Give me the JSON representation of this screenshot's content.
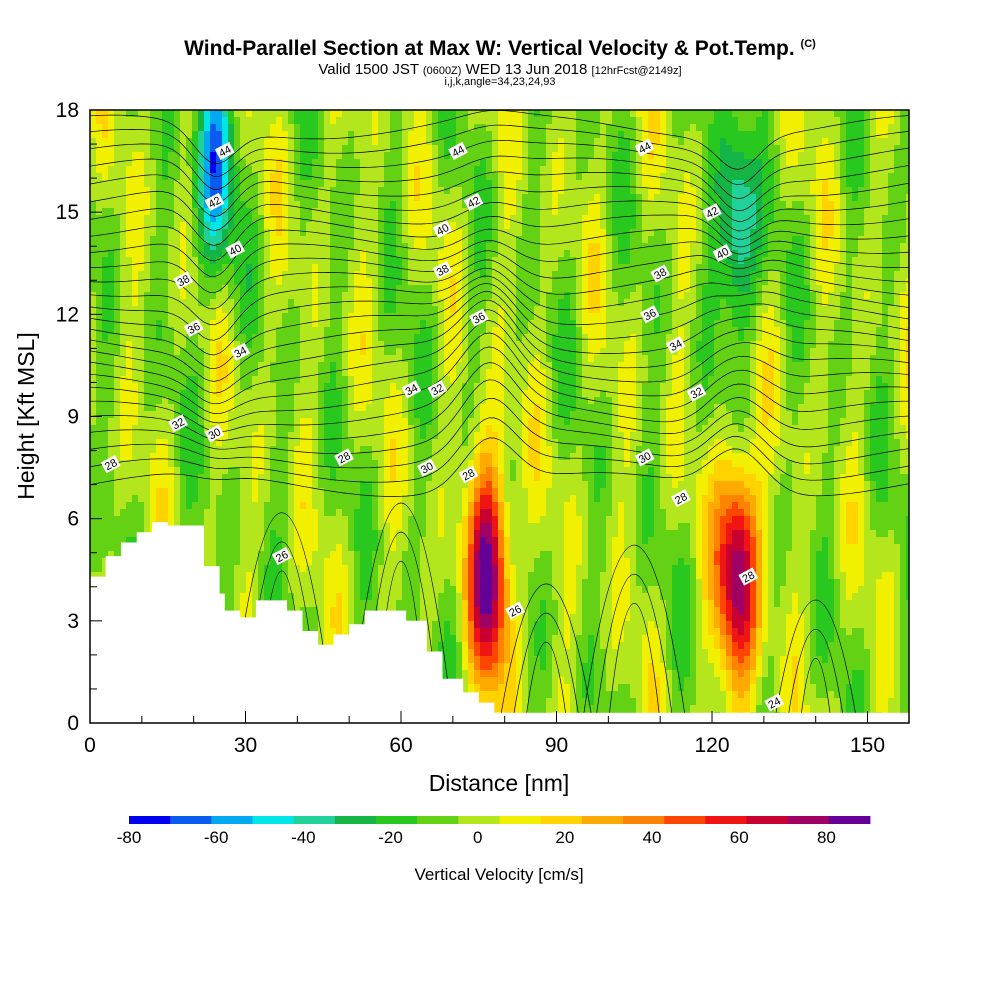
{
  "header": {
    "title": "Wind-Parallel Section at Max W: Vertical Velocity & Pot.Temp.",
    "copyright": "(C)",
    "valid_prefix": "Valid 1500 JST",
    "valid_utc": "(0600Z)",
    "valid_date": "WED 13 Jun 2018",
    "forecast": "[12hrFcst@2149z]",
    "indices": "i,j,k,angle=34,23,24,93"
  },
  "chart_data": {
    "type": "heatmap",
    "title": "Wind-Parallel Section at Max W: Vertical Velocity & Pot.Temp.",
    "xlabel": "Distance [nm]",
    "ylabel": "Height [Kft MSL]",
    "xlim": [
      0,
      158
    ],
    "ylim": [
      0,
      18
    ],
    "x_ticks": [
      0,
      30,
      60,
      90,
      120,
      150
    ],
    "y_ticks": [
      0,
      3,
      6,
      9,
      12,
      15,
      18
    ],
    "colorbar": {
      "label": "Vertical Velocity [cm/s]",
      "range": [
        -80,
        90
      ],
      "step": 10,
      "ticks": [
        -80,
        -60,
        -40,
        -20,
        0,
        20,
        40,
        60,
        80
      ],
      "colors": [
        "#0000ee",
        "#0a5cf0",
        "#00a8f0",
        "#00e6e6",
        "#20d29a",
        "#14b446",
        "#28c81e",
        "#64d214",
        "#b4e61e",
        "#f0f000",
        "#ffd200",
        "#ffaa00",
        "#ff8200",
        "#ff4600",
        "#f01414",
        "#c80032",
        "#a00064",
        "#640096"
      ]
    },
    "terrain": [
      [
        0,
        4.3
      ],
      [
        3,
        4.3
      ],
      [
        3,
        4.9
      ],
      [
        6,
        4.9
      ],
      [
        6,
        5.3
      ],
      [
        9,
        5.3
      ],
      [
        9,
        5.6
      ],
      [
        12,
        5.6
      ],
      [
        12,
        5.9
      ],
      [
        15,
        5.9
      ],
      [
        15,
        5.8
      ],
      [
        22,
        5.8
      ],
      [
        22,
        4.6
      ],
      [
        25,
        4.6
      ],
      [
        25,
        3.8
      ],
      [
        26,
        3.8
      ],
      [
        26,
        3.3
      ],
      [
        29,
        3.3
      ],
      [
        29,
        3.1
      ],
      [
        32,
        3.1
      ],
      [
        32,
        3.6
      ],
      [
        38,
        3.6
      ],
      [
        38,
        3.3
      ],
      [
        41,
        3.3
      ],
      [
        41,
        2.7
      ],
      [
        44,
        2.7
      ],
      [
        44,
        2.3
      ],
      [
        47,
        2.3
      ],
      [
        47,
        2.6
      ],
      [
        50,
        2.6
      ],
      [
        50,
        2.9
      ],
      [
        53,
        2.9
      ],
      [
        53,
        3.3
      ],
      [
        61,
        3.3
      ],
      [
        61,
        3.0
      ],
      [
        65,
        3.0
      ],
      [
        65,
        2.1
      ],
      [
        68,
        2.1
      ],
      [
        68,
        1.3
      ],
      [
        72,
        1.3
      ],
      [
        72,
        0.9
      ],
      [
        75,
        0.9
      ],
      [
        75,
        0.6
      ],
      [
        78,
        0.6
      ],
      [
        78,
        0.3
      ],
      [
        82,
        0.3
      ],
      [
        82,
        0.0
      ]
    ],
    "updrafts": [
      {
        "x": 77,
        "z": 4.5,
        "w": 90
      },
      {
        "x": 125,
        "z": 4.5,
        "w": 90
      }
    ],
    "downdrafts": [
      {
        "x": 24,
        "z": 16.5,
        "w": -60
      },
      {
        "x": 125,
        "z": 14.5,
        "w": -50
      }
    ],
    "contour_labels": [
      {
        "text": "44",
        "x": 26,
        "z": 16.8
      },
      {
        "text": "42",
        "x": 24,
        "z": 15.3
      },
      {
        "text": "40",
        "x": 28,
        "z": 13.9
      },
      {
        "text": "38",
        "x": 18,
        "z": 13.0
      },
      {
        "text": "36",
        "x": 20,
        "z": 11.6
      },
      {
        "text": "34",
        "x": 29,
        "z": 10.9
      },
      {
        "text": "32",
        "x": 17,
        "z": 8.8
      },
      {
        "text": "30",
        "x": 24,
        "z": 8.5
      },
      {
        "text": "28",
        "x": 4,
        "z": 7.6
      },
      {
        "text": "26",
        "x": 37,
        "z": 4.9
      },
      {
        "text": "28",
        "x": 49,
        "z": 7.8
      },
      {
        "text": "44",
        "x": 71,
        "z": 16.8
      },
      {
        "text": "42",
        "x": 74,
        "z": 15.3
      },
      {
        "text": "40",
        "x": 68,
        "z": 14.5
      },
      {
        "text": "38",
        "x": 68,
        "z": 13.3
      },
      {
        "text": "36",
        "x": 75,
        "z": 11.9
      },
      {
        "text": "34",
        "x": 62,
        "z": 9.8
      },
      {
        "text": "32",
        "x": 67,
        "z": 9.8
      },
      {
        "text": "30",
        "x": 65,
        "z": 7.5
      },
      {
        "text": "28",
        "x": 73,
        "z": 7.3
      },
      {
        "text": "26",
        "x": 82,
        "z": 3.3
      },
      {
        "text": "44",
        "x": 107,
        "z": 16.9
      },
      {
        "text": "42",
        "x": 120,
        "z": 15.0
      },
      {
        "text": "40",
        "x": 122,
        "z": 13.8
      },
      {
        "text": "38",
        "x": 110,
        "z": 13.2
      },
      {
        "text": "36",
        "x": 108,
        "z": 12.0
      },
      {
        "text": "34",
        "x": 113,
        "z": 11.1
      },
      {
        "text": "32",
        "x": 117,
        "z": 9.7
      },
      {
        "text": "30",
        "x": 107,
        "z": 7.8
      },
      {
        "text": "28",
        "x": 114,
        "z": 6.6
      },
      {
        "text": "28",
        "x": 127,
        "z": 4.3
      },
      {
        "text": "24",
        "x": 132,
        "z": 0.6
      }
    ]
  }
}
